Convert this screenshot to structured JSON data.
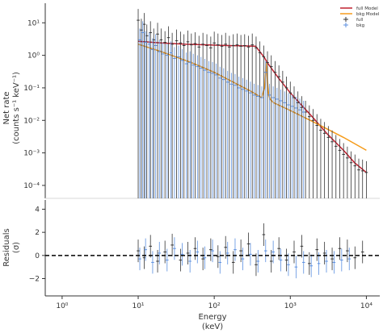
{
  "chart_data": [
    {
      "type": "line",
      "panel": "spectrum",
      "xscale": "log",
      "yscale": "log",
      "xlim": [
        0.6,
        15000
      ],
      "ylim": [
        4e-05,
        40
      ],
      "xlabel": "",
      "ylabel": "Net rate",
      "ylabel_units": "(counts s⁻¹ keV⁻¹)",
      "y_ticks": [
        {
          "value": 10,
          "label": "10¹"
        },
        {
          "value": 1,
          "label": "10⁰"
        },
        {
          "value": 0.1,
          "label": "10⁻¹"
        },
        {
          "value": 0.01,
          "label": "10⁻²"
        },
        {
          "value": 0.001,
          "label": "10⁻³"
        },
        {
          "value": 0.0001,
          "label": "10⁻⁴"
        }
      ],
      "legend": {
        "position": "top-right",
        "entries": [
          {
            "label": "full Model",
            "color": "#c0202f",
            "kind": "line"
          },
          {
            "label": "bkg Model",
            "color": "#f59b1a",
            "kind": "line"
          },
          {
            "label": "full",
            "color": "#333333",
            "kind": "cross"
          },
          {
            "label": "bkg",
            "color": "#5b8fe0",
            "kind": "cross"
          }
        ]
      },
      "grid": false,
      "series": [
        {
          "name": "full Model",
          "color": "#c0202f",
          "x": [
            10,
            20,
            40,
            80,
            150,
            250,
            350,
            450,
            510,
            700,
            1000,
            2000,
            3000,
            5000,
            7000,
            10000
          ],
          "y": [
            2.7,
            2.4,
            2.2,
            2.1,
            2.0,
            1.95,
            1.9,
            0.9,
            0.55,
            0.2,
            0.07,
            0.012,
            0.004,
            0.0012,
            0.0005,
            0.00025
          ]
        },
        {
          "name": "bkg Model",
          "color": "#f59b1a",
          "x": [
            10,
            20,
            50,
            100,
            200,
            300,
            420,
            460,
            480,
            500,
            520,
            540,
            600,
            1000,
            2000,
            5000,
            10000
          ],
          "y": [
            2.2,
            1.3,
            0.6,
            0.3,
            0.13,
            0.08,
            0.05,
            0.1,
            0.6,
            0.15,
            0.06,
            0.045,
            0.035,
            0.02,
            0.009,
            0.003,
            0.0012
          ]
        },
        {
          "name": "full",
          "color": "#333333",
          "x": [
            10,
            11,
            12,
            13,
            14.5,
            16,
            18,
            20,
            22.5,
            25,
            28,
            32,
            36,
            40,
            45,
            50,
            56,
            63,
            71,
            80,
            90,
            100,
            112,
            126,
            141,
            158,
            178,
            200,
            224,
            251,
            282,
            316,
            355,
            398,
            447,
            501,
            562,
            631,
            708,
            794,
            891,
            1000,
            1122,
            1259,
            1413,
            1585,
            1778,
            1995,
            2239,
            2512,
            2818,
            3162,
            3548,
            3981,
            4467,
            5012,
            5623,
            6310,
            7079,
            7943,
            8913,
            10000
          ],
          "y": [
            12,
            6,
            9,
            4,
            5,
            3,
            4.5,
            3,
            2.5,
            3.5,
            2.2,
            2.8,
            2.4,
            2.0,
            2.6,
            2.1,
            2.3,
            1.8,
            2.2,
            2.0,
            1.7,
            2.4,
            2.1,
            1.9,
            2.2,
            1.8,
            2.0,
            2.1,
            1.9,
            2.0,
            1.8,
            2.1,
            1.7,
            1.2,
            0.9,
            0.6,
            0.45,
            0.3,
            0.22,
            0.15,
            0.1,
            0.07,
            0.05,
            0.035,
            0.025,
            0.018,
            0.013,
            0.01,
            0.007,
            0.005,
            0.004,
            0.003,
            0.0022,
            0.0016,
            0.0012,
            0.0009,
            0.0007,
            0.0005,
            0.0004,
            0.0003,
            0.00028,
            0.00025
          ]
        },
        {
          "name": "bkg",
          "color": "#5b8fe0",
          "x": [
            10.5,
            11.5,
            12.5,
            14,
            15.5,
            17,
            19,
            21,
            24,
            27,
            30,
            34,
            38,
            43,
            48,
            53,
            60,
            67,
            75,
            85,
            95,
            106,
            119,
            133,
            150,
            168,
            188,
            211,
            237,
            266,
            299,
            335,
            376,
            422,
            474,
            531,
            596,
            669,
            750,
            842,
            944,
            1059,
            1189,
            1334,
            1496
          ],
          "y": [
            3,
            5,
            2.5,
            2.2,
            1.5,
            2.0,
            1.3,
            1.1,
            1.0,
            1.2,
            0.8,
            0.9,
            0.7,
            0.55,
            0.6,
            0.5,
            0.45,
            0.4,
            0.35,
            0.3,
            0.28,
            0.25,
            0.2,
            0.18,
            0.15,
            0.13,
            0.12,
            0.1,
            0.09,
            0.08,
            0.07,
            0.06,
            0.055,
            0.05,
            0.3,
            0.06,
            0.05,
            0.045,
            0.04,
            0.035,
            0.03,
            0.027,
            0.024,
            0.021,
            0.018
          ]
        }
      ]
    },
    {
      "type": "scatter",
      "panel": "residuals",
      "xscale": "log",
      "xlim": [
        0.6,
        15000
      ],
      "ylim": [
        -3.5,
        4.8
      ],
      "xlabel": "Energy",
      "xlabel_units": "(keV)",
      "ylabel": "Residuals",
      "ylabel_units": "(σ)",
      "x_ticks": [
        {
          "value": 1,
          "label": "10⁰"
        },
        {
          "value": 10,
          "label": "10¹"
        },
        {
          "value": 100,
          "label": "10²"
        },
        {
          "value": 1000,
          "label": "10³"
        },
        {
          "value": 10000,
          "label": "10⁴"
        }
      ],
      "y_ticks": [
        {
          "value": 4,
          "label": "4"
        },
        {
          "value": 2,
          "label": "2"
        },
        {
          "value": 0,
          "label": "0"
        },
        {
          "value": -2,
          "label": "−2"
        }
      ],
      "reference_line": {
        "y": 0,
        "style": "dashed",
        "color": "#000000"
      },
      "series": [
        {
          "name": "full",
          "color": "#333333",
          "x": [
            10,
            12,
            14.5,
            18,
            22.5,
            28,
            36,
            45,
            56,
            71,
            90,
            112,
            141,
            178,
            224,
            282,
            355,
            447,
            562,
            708,
            891,
            1122,
            1413,
            1778,
            2239,
            2818,
            3548,
            4467,
            5623,
            7079,
            8913
          ],
          "y": [
            0.4,
            -0.2,
            0.8,
            -0.5,
            0.3,
            0.9,
            -0.4,
            0.2,
            0.6,
            -0.3,
            0.5,
            -0.1,
            0.7,
            -0.6,
            0.4,
            1.0,
            -0.8,
            1.8,
            -0.5,
            0.6,
            -0.4,
            0.3,
            0.8,
            -0.7,
            0.5,
            0.2,
            -0.3,
            0.6,
            0.4,
            -0.2,
            0.3
          ]
        },
        {
          "name": "bkg",
          "color": "#5b8fe0",
          "x": [
            10.5,
            12.5,
            15.5,
            19,
            24,
            30,
            38,
            48,
            60,
            75,
            95,
            119,
            150,
            188,
            237,
            299,
            376,
            474,
            596,
            750,
            944,
            1189,
            1496,
            1884,
            2371,
            2985,
            3758,
            4731,
            5957
          ],
          "y": [
            -0.3,
            0.5,
            -0.6,
            0.2,
            -0.4,
            0.6,
            0.1,
            -0.5,
            0.3,
            -0.2,
            0.4,
            -0.6,
            0.2,
            0.5,
            -0.3,
            0.1,
            -0.5,
            0.4,
            0.3,
            -0.4,
            -0.8,
            -1.0,
            -0.6,
            -0.9,
            -0.7,
            -0.5,
            -0.6,
            -0.4,
            -0.3
          ]
        }
      ]
    }
  ]
}
